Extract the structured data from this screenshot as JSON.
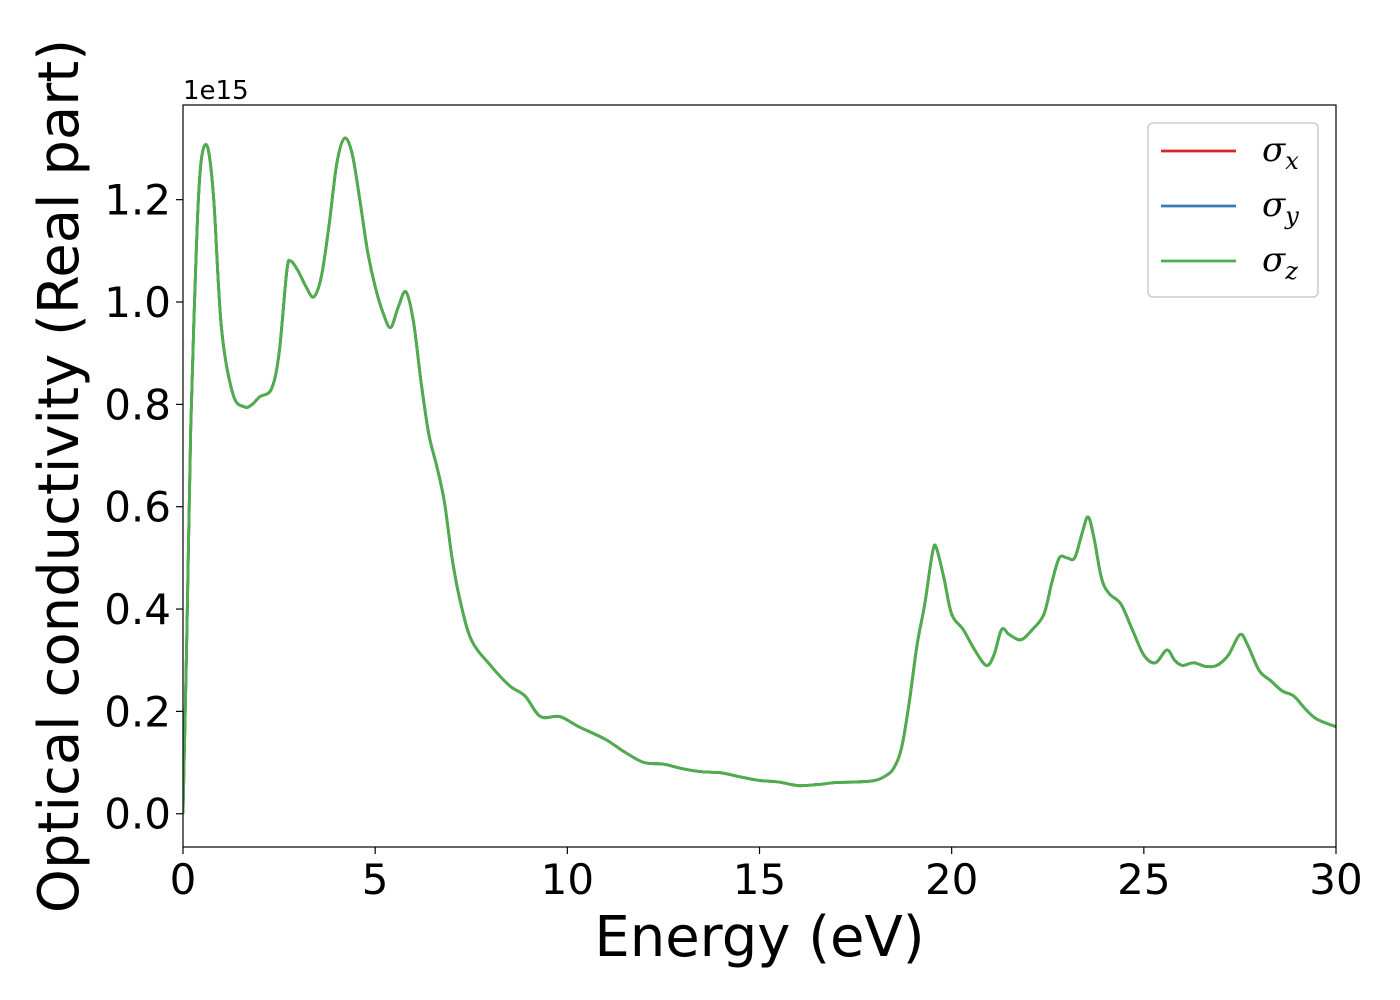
{
  "chart_data": {
    "type": "line",
    "xlabel": "Energy (eV)",
    "ylabel": "Optical conductivity (Real part)",
    "y_offset_text": "1e15",
    "y_scale": 1000000000000000.0,
    "xlim": [
      0,
      30
    ],
    "ylim": [
      -0.065,
      1.385
    ],
    "xticks": [
      0,
      5,
      10,
      15,
      20,
      25,
      30
    ],
    "xtick_labels": [
      "0",
      "5",
      "10",
      "15",
      "20",
      "25",
      "30"
    ],
    "yticks": [
      0.0,
      0.2,
      0.4,
      0.6,
      0.8,
      1.0,
      1.2
    ],
    "ytick_labels": [
      "0.0",
      "0.2",
      "0.4",
      "0.6",
      "0.8",
      "1.0",
      "1.2"
    ],
    "grid": false,
    "legend_position": "top-right",
    "legend": [
      {
        "symbol": "σ",
        "subscript": "x",
        "color": "#d62728"
      },
      {
        "symbol": "σ",
        "subscript": "y",
        "color": "#3a7ab5"
      },
      {
        "symbol": "σ",
        "subscript": "z",
        "color": "#4daf4a"
      }
    ],
    "series_x": [
      0,
      0.1,
      0.2,
      0.3,
      0.4,
      0.5,
      0.65,
      0.8,
      1.0,
      1.3,
      1.6,
      1.8,
      2.0,
      2.3,
      2.5,
      2.7,
      2.8,
      3.0,
      3.2,
      3.4,
      3.6,
      3.8,
      4.0,
      4.2,
      4.4,
      4.6,
      4.8,
      5.0,
      5.2,
      5.4,
      5.6,
      5.8,
      6.0,
      6.2,
      6.4,
      6.6,
      6.8,
      7.0,
      7.2,
      7.5,
      8.0,
      8.5,
      8.9,
      9.3,
      9.8,
      10.3,
      11.0,
      11.5,
      12.0,
      12.5,
      13.0,
      13.5,
      14.0,
      14.5,
      15.0,
      15.5,
      16.0,
      16.5,
      17.0,
      17.5,
      18.0,
      18.3,
      18.5,
      18.7,
      18.9,
      19.1,
      19.3,
      19.5,
      19.6,
      19.8,
      20.0,
      20.3,
      20.6,
      20.9,
      21.1,
      21.3,
      21.5,
      21.8,
      22.1,
      22.4,
      22.6,
      22.8,
      23.0,
      23.2,
      23.4,
      23.55,
      23.7,
      23.9,
      24.1,
      24.4,
      24.7,
      25.0,
      25.3,
      25.6,
      25.8,
      26.0,
      26.3,
      26.6,
      26.9,
      27.2,
      27.5,
      27.7,
      28.0,
      28.3,
      28.6,
      28.9,
      29.2,
      29.5,
      30.0
    ],
    "series": [
      {
        "name": "σx",
        "color": "#d62728",
        "values": [
          0.0,
          0.35,
          0.75,
          1.0,
          1.2,
          1.29,
          1.3,
          1.2,
          0.95,
          0.82,
          0.795,
          0.8,
          0.815,
          0.83,
          0.9,
          1.06,
          1.08,
          1.06,
          1.03,
          1.01,
          1.05,
          1.15,
          1.27,
          1.32,
          1.29,
          1.2,
          1.1,
          1.03,
          0.98,
          0.95,
          0.99,
          1.02,
          0.96,
          0.84,
          0.74,
          0.68,
          0.61,
          0.5,
          0.42,
          0.34,
          0.29,
          0.25,
          0.23,
          0.19,
          0.19,
          0.17,
          0.145,
          0.12,
          0.1,
          0.097,
          0.088,
          0.082,
          0.08,
          0.072,
          0.065,
          0.062,
          0.055,
          0.057,
          0.061,
          0.062,
          0.065,
          0.075,
          0.09,
          0.13,
          0.22,
          0.33,
          0.41,
          0.51,
          0.52,
          0.46,
          0.39,
          0.36,
          0.32,
          0.29,
          0.31,
          0.36,
          0.35,
          0.34,
          0.36,
          0.39,
          0.45,
          0.5,
          0.5,
          0.5,
          0.55,
          0.58,
          0.54,
          0.46,
          0.43,
          0.41,
          0.36,
          0.31,
          0.295,
          0.32,
          0.3,
          0.29,
          0.295,
          0.288,
          0.29,
          0.31,
          0.35,
          0.33,
          0.28,
          0.26,
          0.24,
          0.23,
          0.205,
          0.185,
          0.17
        ]
      },
      {
        "name": "σy",
        "color": "#3a7ab5",
        "values": [
          0.0,
          0.35,
          0.75,
          1.0,
          1.2,
          1.29,
          1.3,
          1.2,
          0.95,
          0.82,
          0.795,
          0.8,
          0.815,
          0.83,
          0.9,
          1.06,
          1.08,
          1.06,
          1.03,
          1.01,
          1.05,
          1.15,
          1.27,
          1.32,
          1.29,
          1.2,
          1.1,
          1.03,
          0.98,
          0.95,
          0.99,
          1.02,
          0.96,
          0.84,
          0.74,
          0.68,
          0.61,
          0.5,
          0.42,
          0.34,
          0.29,
          0.25,
          0.23,
          0.19,
          0.19,
          0.17,
          0.145,
          0.12,
          0.1,
          0.097,
          0.088,
          0.082,
          0.08,
          0.072,
          0.065,
          0.062,
          0.055,
          0.057,
          0.061,
          0.062,
          0.065,
          0.075,
          0.09,
          0.13,
          0.22,
          0.33,
          0.41,
          0.51,
          0.52,
          0.46,
          0.39,
          0.36,
          0.32,
          0.29,
          0.31,
          0.36,
          0.35,
          0.34,
          0.36,
          0.39,
          0.45,
          0.5,
          0.5,
          0.5,
          0.55,
          0.58,
          0.54,
          0.46,
          0.43,
          0.41,
          0.36,
          0.31,
          0.295,
          0.32,
          0.3,
          0.29,
          0.295,
          0.288,
          0.29,
          0.31,
          0.35,
          0.33,
          0.28,
          0.26,
          0.24,
          0.23,
          0.205,
          0.185,
          0.17
        ]
      },
      {
        "name": "σz",
        "color": "#4daf4a",
        "values": [
          0.0,
          0.35,
          0.75,
          1.0,
          1.2,
          1.29,
          1.3,
          1.2,
          0.95,
          0.82,
          0.795,
          0.8,
          0.815,
          0.83,
          0.9,
          1.06,
          1.08,
          1.06,
          1.03,
          1.01,
          1.05,
          1.15,
          1.27,
          1.32,
          1.29,
          1.2,
          1.1,
          1.03,
          0.98,
          0.95,
          0.99,
          1.02,
          0.96,
          0.84,
          0.74,
          0.68,
          0.61,
          0.5,
          0.42,
          0.34,
          0.29,
          0.25,
          0.23,
          0.19,
          0.19,
          0.17,
          0.145,
          0.12,
          0.1,
          0.097,
          0.088,
          0.082,
          0.08,
          0.072,
          0.065,
          0.062,
          0.055,
          0.057,
          0.061,
          0.062,
          0.065,
          0.075,
          0.09,
          0.13,
          0.22,
          0.33,
          0.41,
          0.51,
          0.52,
          0.46,
          0.39,
          0.36,
          0.32,
          0.29,
          0.31,
          0.36,
          0.35,
          0.34,
          0.36,
          0.39,
          0.45,
          0.5,
          0.5,
          0.5,
          0.55,
          0.58,
          0.54,
          0.46,
          0.43,
          0.41,
          0.36,
          0.31,
          0.295,
          0.32,
          0.3,
          0.29,
          0.295,
          0.288,
          0.29,
          0.31,
          0.35,
          0.33,
          0.28,
          0.26,
          0.24,
          0.23,
          0.205,
          0.185,
          0.17
        ]
      }
    ]
  }
}
